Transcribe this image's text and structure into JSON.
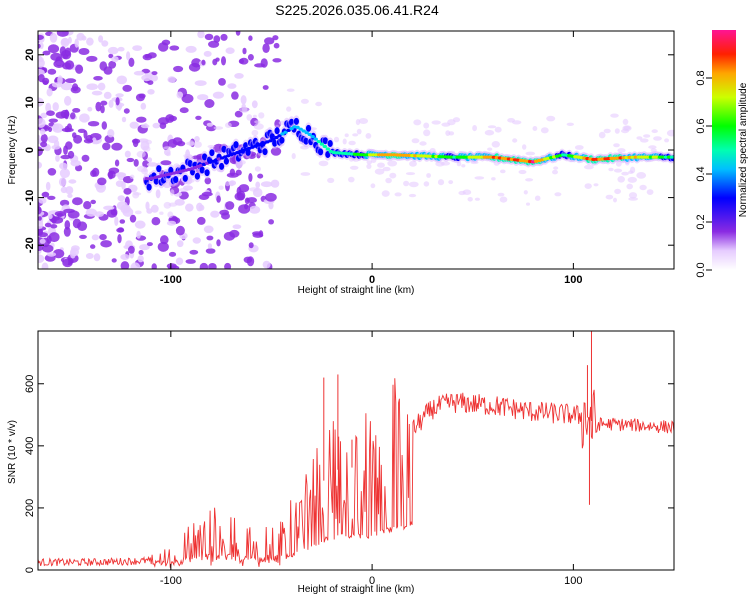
{
  "title": "S225.2026.035.06.41.R24",
  "chart_data": [
    {
      "type": "heatmap",
      "name": "spectrogram",
      "xlabel": "Height of straight line (km)",
      "ylabel": "Frequency (Hz)",
      "xlim": [
        -166,
        150
      ],
      "ylim": [
        -25,
        25
      ],
      "xticks": [
        -100,
        0,
        100
      ],
      "yticks": [
        20,
        10,
        0,
        -10,
        -20
      ],
      "colorbar": {
        "label": "Normalized spectral amplitude",
        "range": [
          0,
          1
        ],
        "ticks": [
          0.0,
          0.2,
          0.4,
          0.6,
          0.8
        ]
      },
      "ridge": {
        "x": [
          -110,
          -90,
          -70,
          -50,
          -38,
          -30,
          -20,
          -5,
          10,
          40,
          60,
          80,
          95,
          110,
          130,
          150
        ],
        "freq": [
          -6,
          -4,
          -1,
          2,
          5,
          3,
          -0.5,
          -1,
          -1,
          -1.5,
          -1.5,
          -2.5,
          -1,
          -2,
          -1.5,
          -1.5
        ],
        "amplitude": [
          0.12,
          0.15,
          0.2,
          0.28,
          0.35,
          0.4,
          0.5,
          0.55,
          0.9,
          0.55,
          0.85,
          0.95,
          0.5,
          0.95,
          0.8,
          0.5
        ]
      }
    },
    {
      "type": "line",
      "name": "snr",
      "xlabel": "Height of straight line (km)",
      "ylabel": "SNR (10 * v/v)",
      "xlim": [
        -166,
        150
      ],
      "ylim": [
        0,
        770
      ],
      "xticks": [
        -100,
        0,
        100
      ],
      "yticks": [
        0,
        200,
        400,
        600
      ],
      "color": "#ee3333",
      "envelope": {
        "x": [
          -166,
          -140,
          -110,
          -100,
          -90,
          -80,
          -70,
          -60,
          -50,
          -40,
          -30,
          -20,
          -10,
          0,
          10,
          20,
          30,
          40,
          60,
          80,
          100,
          108,
          110,
          120,
          150
        ],
        "y": [
          25,
          25,
          30,
          40,
          80,
          110,
          100,
          80,
          90,
          120,
          240,
          320,
          330,
          340,
          400,
          450,
          520,
          540,
          530,
          510,
          500,
          490,
          470,
          470,
          460
        ]
      },
      "spikes": [
        {
          "x": -24,
          "y": 620
        },
        {
          "x": -17,
          "y": 630
        },
        {
          "x": -10,
          "y": 420
        },
        {
          "x": 107,
          "y": 660
        },
        {
          "x": 108,
          "y": 210
        },
        {
          "x": 109,
          "y": 770
        }
      ]
    }
  ]
}
